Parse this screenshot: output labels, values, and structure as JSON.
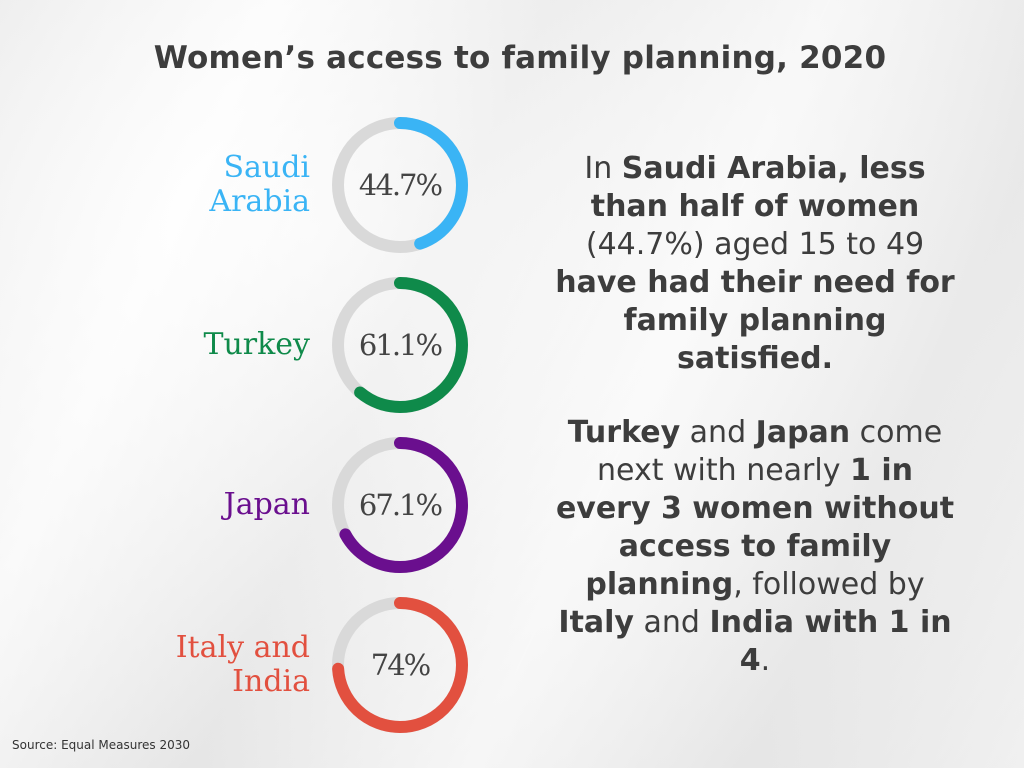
{
  "title": "Women’s access to family planning, 2020",
  "source": "Source: Equal Measures 2030",
  "chart_data": {
    "type": "donut",
    "title": "Women’s access to family planning, 2020",
    "max": 100,
    "items": [
      {
        "label_lines": [
          "Saudi",
          "Arabia"
        ],
        "value": 44.7,
        "display": "44.7%",
        "color": "#3ab4f5"
      },
      {
        "label_lines": [
          "Turkey"
        ],
        "value": 61.1,
        "display": "61.1%",
        "color": "#0f8a4a"
      },
      {
        "label_lines": [
          "Japan"
        ],
        "value": 67.1,
        "display": "67.1%",
        "color": "#6a0f8e"
      },
      {
        "label_lines": [
          "Italy and",
          "India"
        ],
        "value": 74,
        "display": "74%",
        "color": "#e2503f"
      }
    ],
    "track_color": "#d9d9d9"
  },
  "narrative": [
    [
      {
        "t": "In ",
        "b": false
      },
      {
        "t": "Saudi Arabia, less than half of women",
        "b": true
      },
      {
        "t": " (44.7%) aged 15 to 49 ",
        "b": false
      },
      {
        "t": "have had their need for family planning satisfied.",
        "b": true
      }
    ],
    [
      {
        "t": "Turkey",
        "b": true
      },
      {
        "t": " and ",
        "b": false
      },
      {
        "t": "Japan",
        "b": true
      },
      {
        "t": " come next with nearly ",
        "b": false
      },
      {
        "t": "1 in every 3 women without access to family planning",
        "b": true
      },
      {
        "t": ", followed by ",
        "b": false
      },
      {
        "t": "Italy",
        "b": true
      },
      {
        "t": " and ",
        "b": false
      },
      {
        "t": "India with 1 in 4",
        "b": true
      },
      {
        "t": ".",
        "b": false
      }
    ]
  ]
}
